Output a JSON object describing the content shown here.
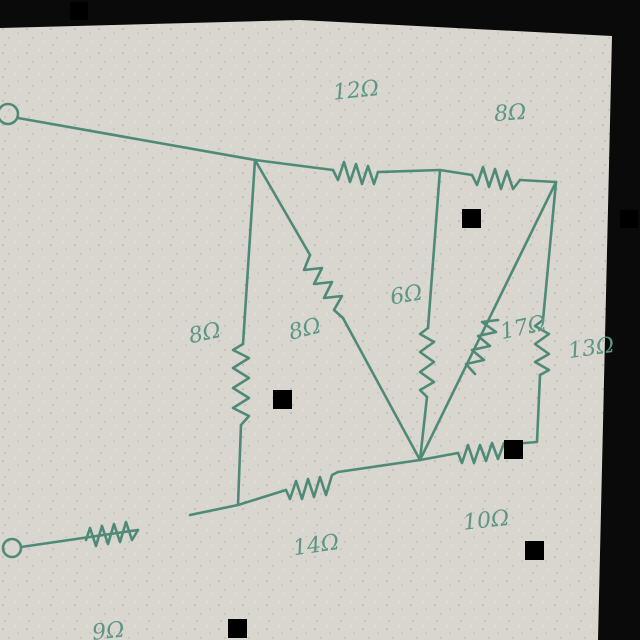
{
  "diagram": {
    "type": "resistor-network-sketch",
    "colors": {
      "ink": "#4f8a78",
      "paper": "#d9d6cf",
      "background": "#0a0a0a"
    },
    "labels": {
      "r_top_left": "12Ω",
      "r_top_right": "8Ω",
      "r_left_vertical": "8Ω",
      "r_diagonal": "8Ω",
      "r_middle_vertical": "6Ω",
      "r_right_diagonal": "17Ω",
      "r_right_vertical": "13Ω",
      "r_bottom_middle": "14Ω",
      "r_bottom_right": "10Ω",
      "r_bottom_left": "9Ω"
    }
  }
}
